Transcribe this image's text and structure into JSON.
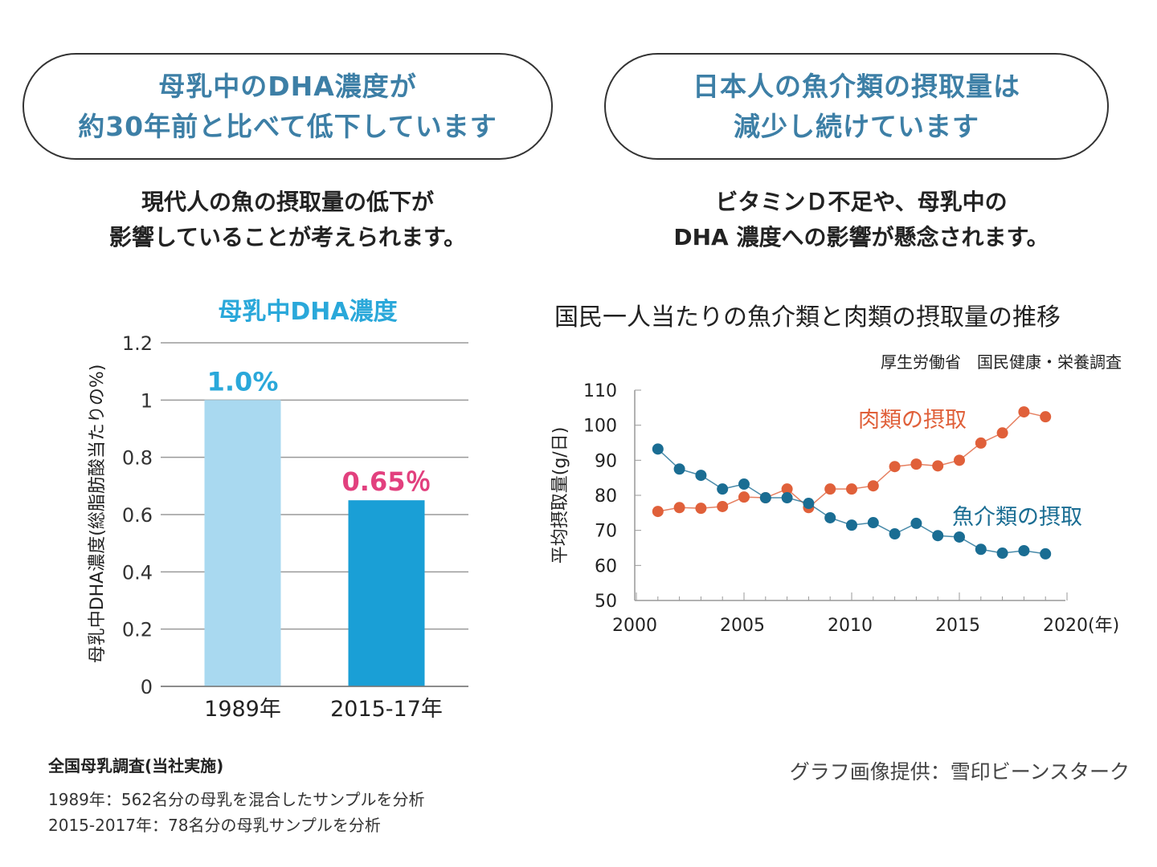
{
  "left": {
    "headline": [
      "母乳中のDHA濃度が",
      "約30年前と比べて低下しています"
    ],
    "subtitle": [
      "現代人の魚の摂取量の低下が",
      "影響していることが考えられます。"
    ],
    "source_title": "全国母乳調査(当社実施)",
    "source_notes": [
      "1989年：562名分の母乳を混合したサンプルを分析",
      "2015-2017年：78名分の母乳サンプルを分析"
    ]
  },
  "right": {
    "headline": [
      "日本人の魚介類の摂取量は",
      "減少し続けています"
    ],
    "subtitle": [
      "ビタミンＤ不足や、母乳中の",
      "DHA 濃度への影響が懸念されます。"
    ],
    "credit": "グラフ画像提供：雪印ビーンスターク"
  },
  "chart_data": [
    {
      "type": "bar",
      "title": "母乳中DHA濃度",
      "ylabel": "母乳中DHA濃度(総脂肪酸当たりの%)",
      "categories": [
        "1989年",
        "2015-17年"
      ],
      "values": [
        1.0,
        0.65
      ],
      "data_labels": [
        "1.0%",
        "0.65％"
      ],
      "yticks": [
        "0",
        "0.2",
        "0.4",
        "0.6",
        "0.8",
        "1",
        "1.2"
      ],
      "ylim": [
        0,
        1.2
      ],
      "grid": true,
      "colors": [
        "#a9d9f0",
        "#1a9fd6"
      ],
      "label_colors": [
        "#2aa8da",
        "#e2407e"
      ]
    },
    {
      "type": "line",
      "title": "国民一人当たりの魚介類と肉類の摂取量の推移",
      "subtitle": "厚生労働省　国民健康・栄養調査",
      "ylabel": "平均摂取量(g/日)",
      "xlim": [
        2000,
        2020
      ],
      "ylim": [
        50,
        110
      ],
      "xticks": [
        "2000",
        "2005",
        "2010",
        "2015",
        "2020(年)"
      ],
      "yticks": [
        "50",
        "60",
        "70",
        "80",
        "90",
        "100",
        "110"
      ],
      "grid": false,
      "x": [
        2001,
        2002,
        2003,
        2004,
        2005,
        2006,
        2007,
        2008,
        2009,
        2010,
        2011,
        2012,
        2013,
        2014,
        2015,
        2016,
        2017,
        2018,
        2019
      ],
      "series": [
        {
          "name": "肉類の摂取",
          "color": "#e0603a",
          "values": [
            75.4,
            76.5,
            76.3,
            76.8,
            79.5,
            79.3,
            81.8,
            76.5,
            81.8,
            81.8,
            82.7,
            88.2,
            88.9,
            88.4,
            90.0,
            94.9,
            97.8,
            103.8,
            102.4
          ]
        },
        {
          "name": "魚介類の摂取",
          "color": "#1a6d93",
          "values": [
            93.2,
            87.5,
            85.7,
            81.8,
            83.2,
            79.3,
            79.3,
            77.7,
            73.6,
            71.5,
            72.2,
            69.0,
            72.0,
            68.5,
            68.1,
            64.6,
            63.5,
            64.2,
            63.3
          ]
        }
      ]
    }
  ]
}
